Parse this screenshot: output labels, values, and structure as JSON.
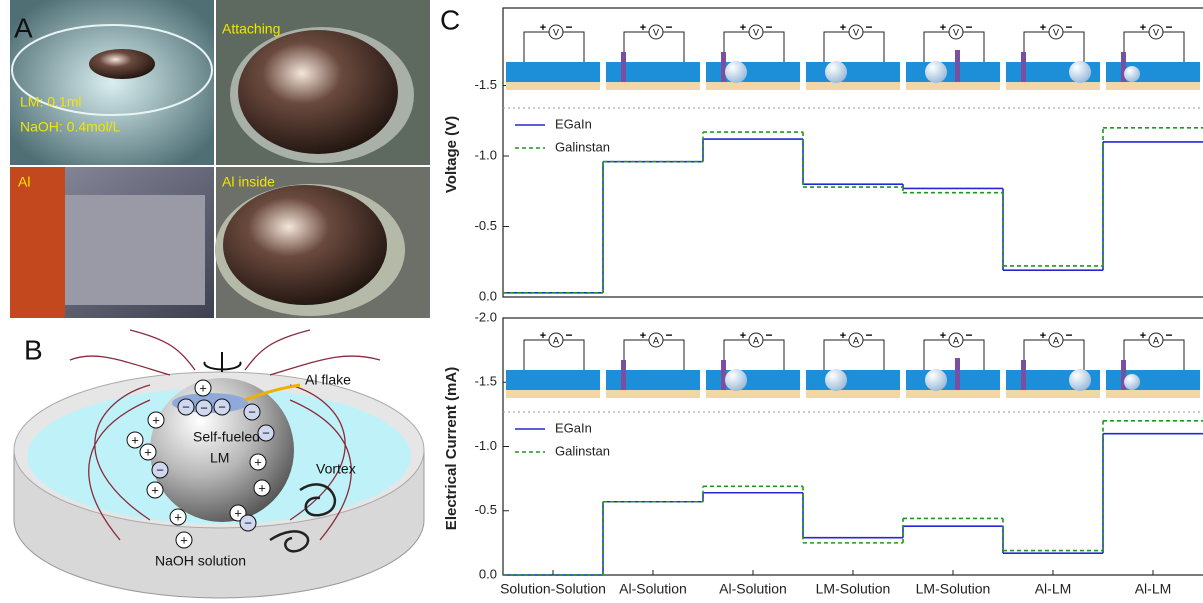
{
  "panel_a": {
    "label": "A",
    "photo_labels": [
      "Attaching",
      "Al",
      "Al inside"
    ],
    "lm_volume": "LM: 0.1ml",
    "naoh": "NaOH: 0.4mol/L"
  },
  "panel_b": {
    "label": "B",
    "al_flake": "Al flake",
    "sphere": [
      "Self-fueled",
      "LM"
    ],
    "vortex": "Vortex",
    "solution": "NaOH solution",
    "signs": [
      "+",
      "−"
    ]
  },
  "panel_c": {
    "label": "C"
  },
  "chart_data": [
    {
      "type": "step",
      "y_label": "Voltage (V)",
      "inset_meter": "V",
      "inset_terminals": [
        "+",
        "−"
      ],
      "ylim": [
        0,
        -2.05
      ],
      "yticks": [
        {
          "value": -1.5,
          "label": "-1.5"
        },
        {
          "value": -1.0,
          "label": "-1.0"
        },
        {
          "value": -0.5,
          "label": "-0.5"
        },
        {
          "value": 0.0,
          "label": "0.0"
        }
      ],
      "series": [
        {
          "name": "EGaIn",
          "color": "#2727d9",
          "dash": false,
          "values": [
            -0.03,
            -0.96,
            -1.12,
            -0.8,
            -0.77,
            -0.19,
            -1.1
          ]
        },
        {
          "name": "Galinstan",
          "color": "#1a9a1a",
          "dash": true,
          "values": [
            -0.03,
            -0.96,
            -1.17,
            -0.78,
            -0.74,
            -0.22,
            -1.2
          ]
        }
      ]
    },
    {
      "type": "step",
      "y_label": "Electrical Current (mA)",
      "inset_meter": "A",
      "inset_terminals": [
        "+",
        "−"
      ],
      "categories": [
        "Solution-Solution",
        "Al-Solution",
        "Al-Solution",
        "LM-Solution",
        "LM-Solution",
        "Al-LM",
        "Al-LM"
      ],
      "ylim": [
        0,
        -2.0
      ],
      "yticks": [
        {
          "value": -2.0,
          "label": "-2.0"
        },
        {
          "value": -1.5,
          "label": "-1.5"
        },
        {
          "value": -1.0,
          "label": "-1.0"
        },
        {
          "value": -0.5,
          "label": "-0.5"
        },
        {
          "value": 0.0,
          "label": "0.0"
        }
      ],
      "series": [
        {
          "name": "EGaIn",
          "color": "#2727d9",
          "dash": false,
          "values": [
            0.0,
            -0.57,
            -0.64,
            -0.29,
            -0.38,
            -0.17,
            -1.1
          ]
        },
        {
          "name": "Galinstan",
          "color": "#1a9a1a",
          "dash": true,
          "values": [
            0.0,
            -0.57,
            -0.69,
            -0.25,
            -0.44,
            -0.19,
            -1.2
          ]
        }
      ]
    }
  ]
}
